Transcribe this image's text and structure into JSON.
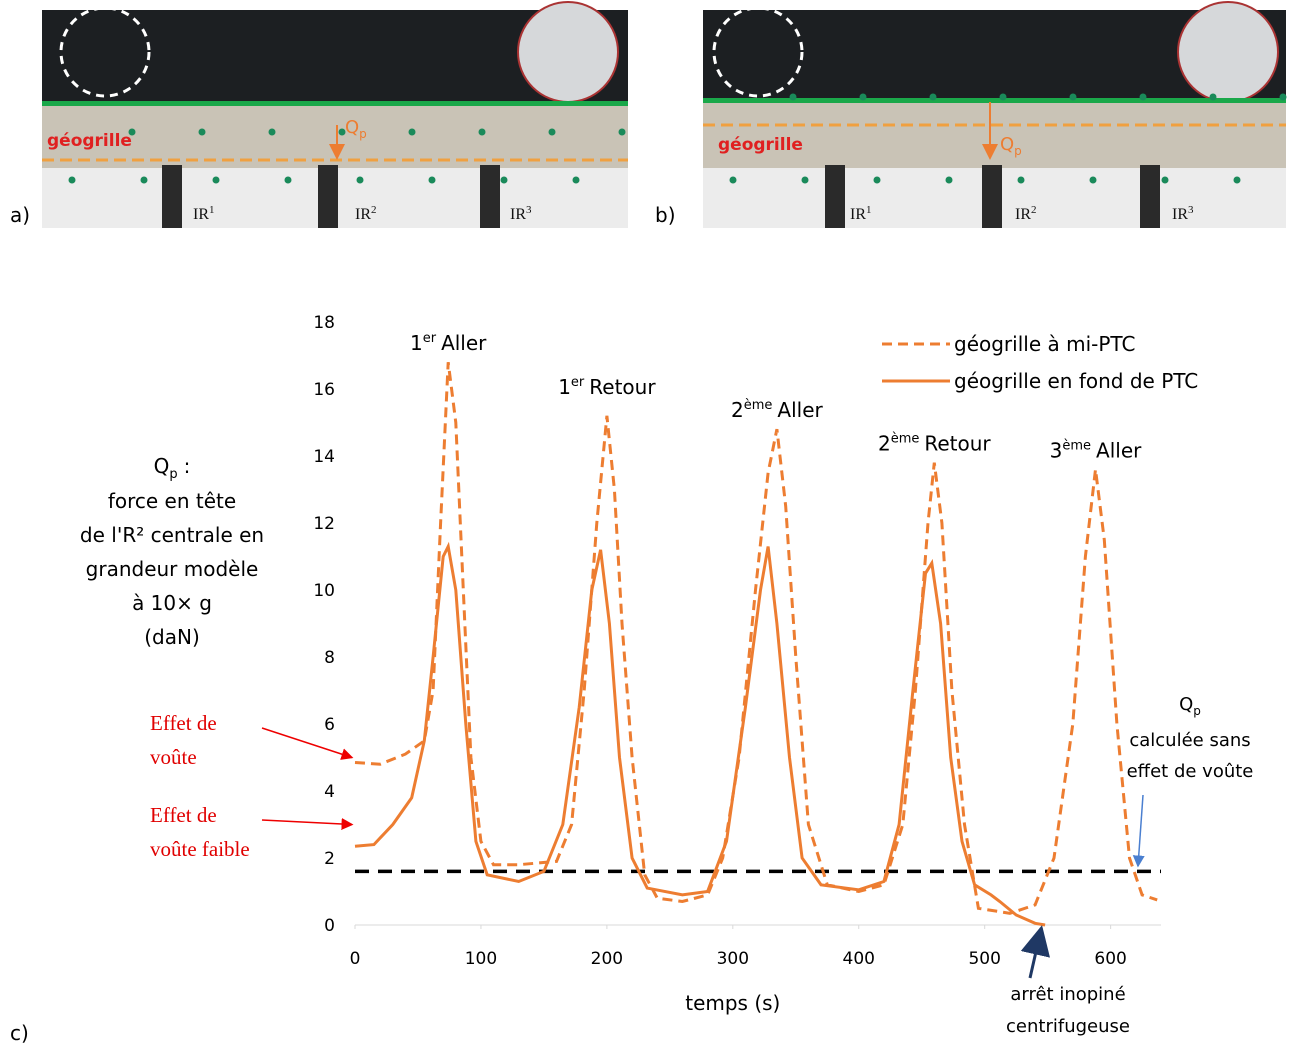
{
  "photos": [
    {
      "panel": "a)",
      "geogrid_label": "géogrille",
      "force_label": {
        "base": "Q",
        "sub": "p"
      },
      "piles": [
        {
          "base": "IR",
          "sup": "1"
        },
        {
          "base": "IR",
          "sup": "2"
        },
        {
          "base": "IR",
          "sup": "3"
        }
      ]
    },
    {
      "panel": "b)",
      "geogrid_label": "géogrille",
      "force_label": {
        "base": "Q",
        "sub": "p"
      },
      "piles": [
        {
          "base": "IR",
          "sup": "1"
        },
        {
          "base": "IR",
          "sup": "2"
        },
        {
          "base": "IR",
          "sup": "3"
        }
      ]
    }
  ],
  "chart_data": {
    "type": "line",
    "panel": "c)",
    "xlabel": "temps (s)",
    "ylabel": {
      "symbol": "Q",
      "sub": "p",
      "suffix": ":",
      "lines": [
        "force en tête",
        "de l'R² centrale en",
        "grandeur modèle",
        "à 10× g",
        "(daN)"
      ]
    },
    "xlim": [
      0,
      640
    ],
    "ylim": [
      0,
      18
    ],
    "xticks": [
      0,
      100,
      200,
      300,
      400,
      500,
      600
    ],
    "yticks": [
      0,
      2,
      4,
      6,
      8,
      10,
      12,
      14,
      16,
      18
    ],
    "grid": false,
    "legend": "top-right",
    "series": [
      {
        "name": "géogrille à mi-PTC",
        "color": "#ed7d31",
        "dash": true,
        "x": [
          0,
          20,
          40,
          55,
          62,
          68,
          74,
          80,
          86,
          92,
          100,
          110,
          130,
          160,
          172,
          182,
          192,
          200,
          206,
          212,
          220,
          230,
          240,
          260,
          280,
          292,
          305,
          318,
          328,
          335,
          342,
          350,
          360,
          375,
          400,
          420,
          435,
          445,
          455,
          460,
          466,
          474,
          484,
          495,
          520,
          540,
          555,
          570,
          580,
          588,
          595,
          605,
          615,
          625,
          637
        ],
        "values": [
          4.85,
          4.8,
          5.1,
          5.5,
          7,
          12,
          16.8,
          15,
          10,
          5,
          2.5,
          1.8,
          1.8,
          1.9,
          3,
          7,
          12,
          15.2,
          13,
          9,
          5,
          1.5,
          0.8,
          0.7,
          0.9,
          2,
          5,
          10,
          13.5,
          14.8,
          12.5,
          8,
          3,
          1.2,
          1.0,
          1.2,
          3,
          7,
          12,
          13.8,
          12,
          7,
          3,
          0.5,
          0.35,
          0.6,
          2,
          6,
          11,
          13.6,
          11.5,
          6,
          2,
          0.9,
          0.75
        ]
      },
      {
        "name": "géogrille en fond de PTC",
        "color": "#ed7d31",
        "dash": false,
        "x": [
          0,
          15,
          30,
          45,
          55,
          62,
          70,
          74,
          80,
          88,
          96,
          105,
          130,
          150,
          165,
          178,
          188,
          195,
          202,
          210,
          220,
          232,
          260,
          280,
          295,
          310,
          322,
          328,
          335,
          345,
          355,
          370,
          400,
          420,
          432,
          443,
          453,
          458,
          465,
          473,
          482,
          492,
          505,
          512,
          525,
          540,
          548
        ],
        "values": [
          2.35,
          2.4,
          3,
          3.8,
          5.5,
          8,
          11,
          11.3,
          10,
          6,
          2.5,
          1.5,
          1.3,
          1.6,
          3,
          6.5,
          10,
          11.2,
          9,
          5,
          2,
          1.1,
          0.9,
          1.0,
          2.5,
          6.5,
          10,
          11.3,
          9,
          5,
          2,
          1.2,
          1.05,
          1.3,
          3,
          7,
          10.5,
          10.8,
          9,
          5,
          2.5,
          1.2,
          0.9,
          0.7,
          0.3,
          0.05,
          0
        ]
      }
    ],
    "reference_line": {
      "value": 1.6,
      "color": "#000000"
    },
    "peak_labels": [
      {
        "num": "1",
        "sup": "er",
        "word": "Aller",
        "x": 74,
        "y": 16.8
      },
      {
        "num": "1",
        "sup": "er",
        "word": "Retour",
        "x": 200,
        "y": 15.2
      },
      {
        "num": "2",
        "sup": "ème",
        "word": "Aller",
        "x": 335,
        "y": 14.8
      },
      {
        "num": "2",
        "sup": "ème",
        "word": "Retour",
        "x": 460,
        "y": 13.8
      },
      {
        "num": "3",
        "sup": "ème",
        "word": "Aller",
        "x": 588,
        "y": 13.6
      }
    ],
    "annotations": {
      "vault": {
        "lines": [
          "Effet de",
          "voûte"
        ],
        "y": 5
      },
      "weak_vault": {
        "lines": [
          "Effet de",
          "voûte faible"
        ],
        "y": 3
      },
      "no_vault": {
        "symbol": "Q",
        "sub": "p",
        "lines": [
          "calculée sans",
          "effet de voûte"
        ]
      },
      "stop": {
        "lines": [
          "arrêt inopiné",
          "centrifugeuse"
        ],
        "x": 545
      }
    }
  }
}
